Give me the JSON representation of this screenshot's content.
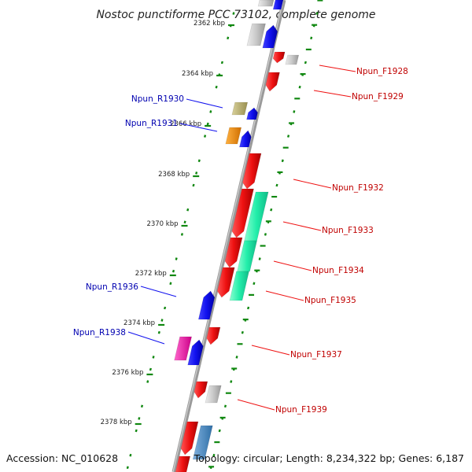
{
  "title": "Nostoc punctiforme PCC 73102, complete genome",
  "footer": {
    "accession": "Accession: NC_010628",
    "topology": "Topology: circular; Length: 8,234,322 bp; Genes: 6,187"
  },
  "ticks": [
    {
      "label": "2362 kbp"
    },
    {
      "label": "2364 kbp"
    },
    {
      "label": "2366 kbp"
    },
    {
      "label": "2368 kbp"
    },
    {
      "label": "2370 kbp"
    },
    {
      "label": "2372 kbp"
    },
    {
      "label": "2374 kbp"
    },
    {
      "label": "2376 kbp"
    },
    {
      "label": "2378 kbp"
    }
  ],
  "reverse_labels": [
    "Npun_R1930",
    "Npun_R1931",
    "Npun_R1936",
    "Npun_R1938"
  ],
  "forward_labels": [
    "Npun_F1928",
    "Npun_F1929",
    "Npun_F1932",
    "Npun_F1933",
    "Npun_F1934",
    "Npun_F1935",
    "Npun_F1937",
    "Npun_F1939"
  ],
  "colors": {
    "forward_gene": "#ee1111",
    "reverse_gene": "#1111ee",
    "rna_green": "#22eeaa",
    "grey_gene": "#c8c8c8",
    "tick_green": "#118811",
    "backbone": "#888888",
    "forward_label": "#c00000",
    "reverse_label": "#0000b0"
  }
}
